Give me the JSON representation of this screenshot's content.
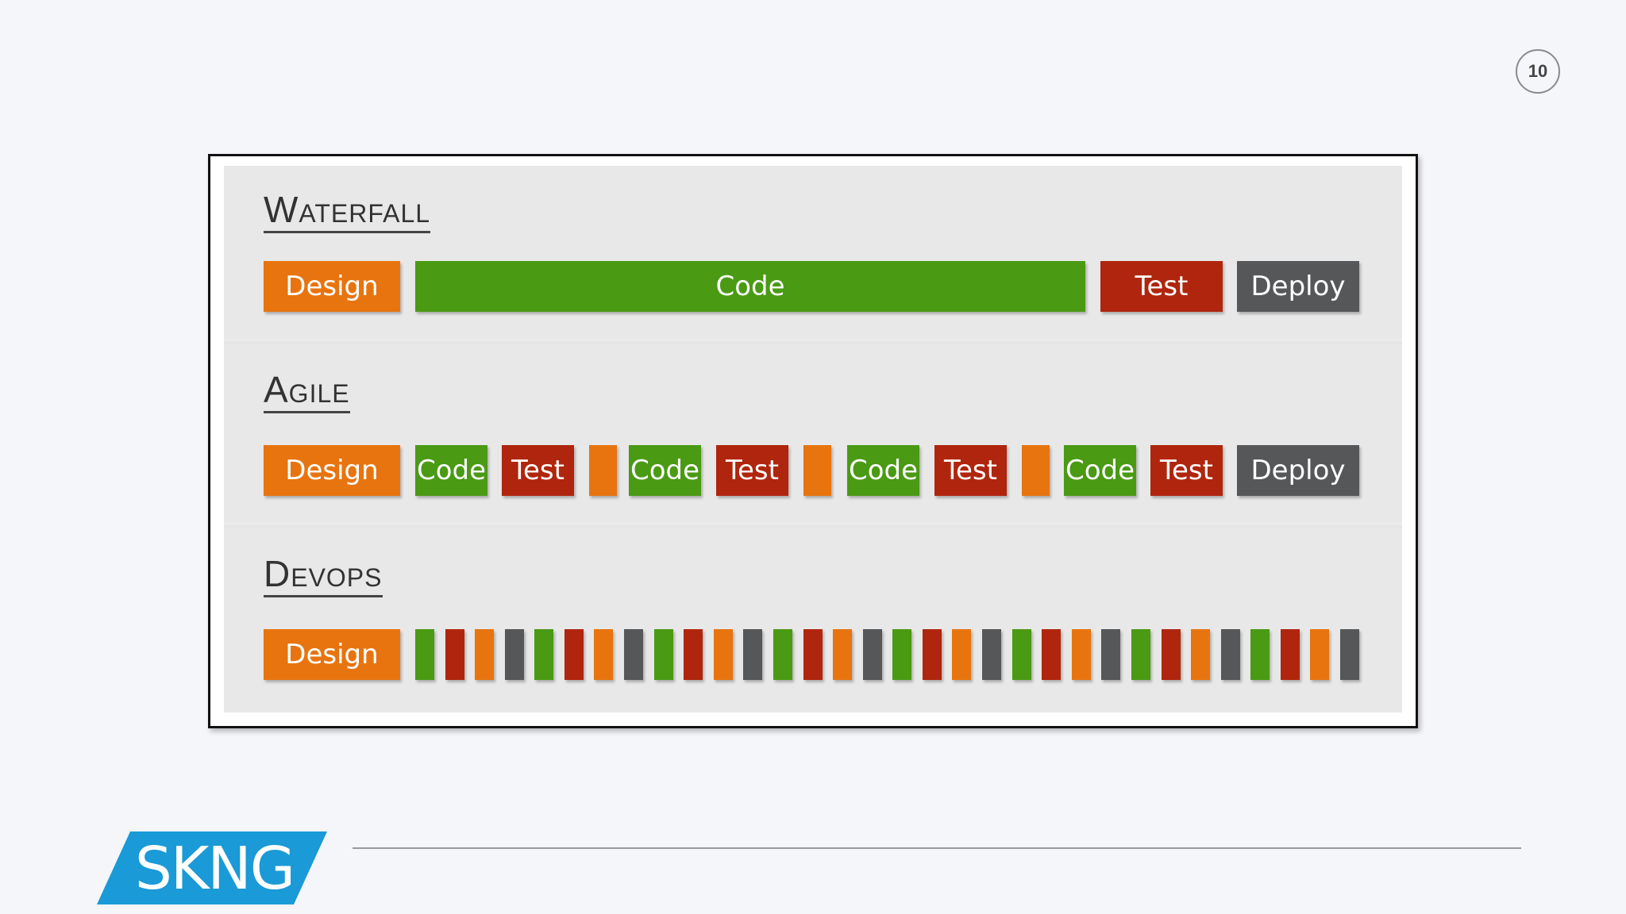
{
  "page_number": "10",
  "colors": {
    "design": "#e8740f",
    "code": "#4a9a14",
    "test": "#b0250d",
    "deploy": "#555759",
    "logo": "#1a9ad6"
  },
  "logo_text": "SKNG",
  "models": [
    {
      "title": "Waterfall",
      "blocks": [
        {
          "type": "design",
          "label": "Design"
        },
        {
          "type": "code",
          "label": "Code"
        },
        {
          "type": "test",
          "label": "Test"
        },
        {
          "type": "deploy",
          "label": "Deploy"
        }
      ]
    },
    {
      "title": "Agile",
      "blocks": [
        {
          "type": "design",
          "label": "Design"
        },
        {
          "type": "code",
          "label": "Code"
        },
        {
          "type": "test",
          "label": "Test"
        },
        {
          "type": "design",
          "label": ""
        },
        {
          "type": "code",
          "label": "Code"
        },
        {
          "type": "test",
          "label": "Test"
        },
        {
          "type": "design",
          "label": ""
        },
        {
          "type": "code",
          "label": "Code"
        },
        {
          "type": "test",
          "label": "Test"
        },
        {
          "type": "design",
          "label": ""
        },
        {
          "type": "code",
          "label": "Code"
        },
        {
          "type": "test",
          "label": "Test"
        },
        {
          "type": "deploy",
          "label": "Deploy"
        }
      ]
    },
    {
      "title": "Devops",
      "blocks": [
        {
          "type": "design",
          "label": "Design"
        },
        {
          "type": "code",
          "label": ""
        },
        {
          "type": "test",
          "label": ""
        },
        {
          "type": "design",
          "label": ""
        },
        {
          "type": "deploy",
          "label": ""
        },
        {
          "type": "code",
          "label": ""
        },
        {
          "type": "test",
          "label": ""
        },
        {
          "type": "design",
          "label": ""
        },
        {
          "type": "deploy",
          "label": ""
        },
        {
          "type": "code",
          "label": ""
        },
        {
          "type": "test",
          "label": ""
        },
        {
          "type": "design",
          "label": ""
        },
        {
          "type": "deploy",
          "label": ""
        },
        {
          "type": "code",
          "label": ""
        },
        {
          "type": "test",
          "label": ""
        },
        {
          "type": "design",
          "label": ""
        },
        {
          "type": "deploy",
          "label": ""
        },
        {
          "type": "code",
          "label": ""
        },
        {
          "type": "test",
          "label": ""
        },
        {
          "type": "design",
          "label": ""
        },
        {
          "type": "deploy",
          "label": ""
        },
        {
          "type": "code",
          "label": ""
        },
        {
          "type": "test",
          "label": ""
        },
        {
          "type": "design",
          "label": ""
        },
        {
          "type": "deploy",
          "label": ""
        },
        {
          "type": "code",
          "label": ""
        },
        {
          "type": "test",
          "label": ""
        },
        {
          "type": "design",
          "label": ""
        },
        {
          "type": "deploy",
          "label": ""
        },
        {
          "type": "code",
          "label": ""
        },
        {
          "type": "test",
          "label": ""
        },
        {
          "type": "design",
          "label": ""
        },
        {
          "type": "deploy",
          "label": ""
        }
      ]
    }
  ]
}
